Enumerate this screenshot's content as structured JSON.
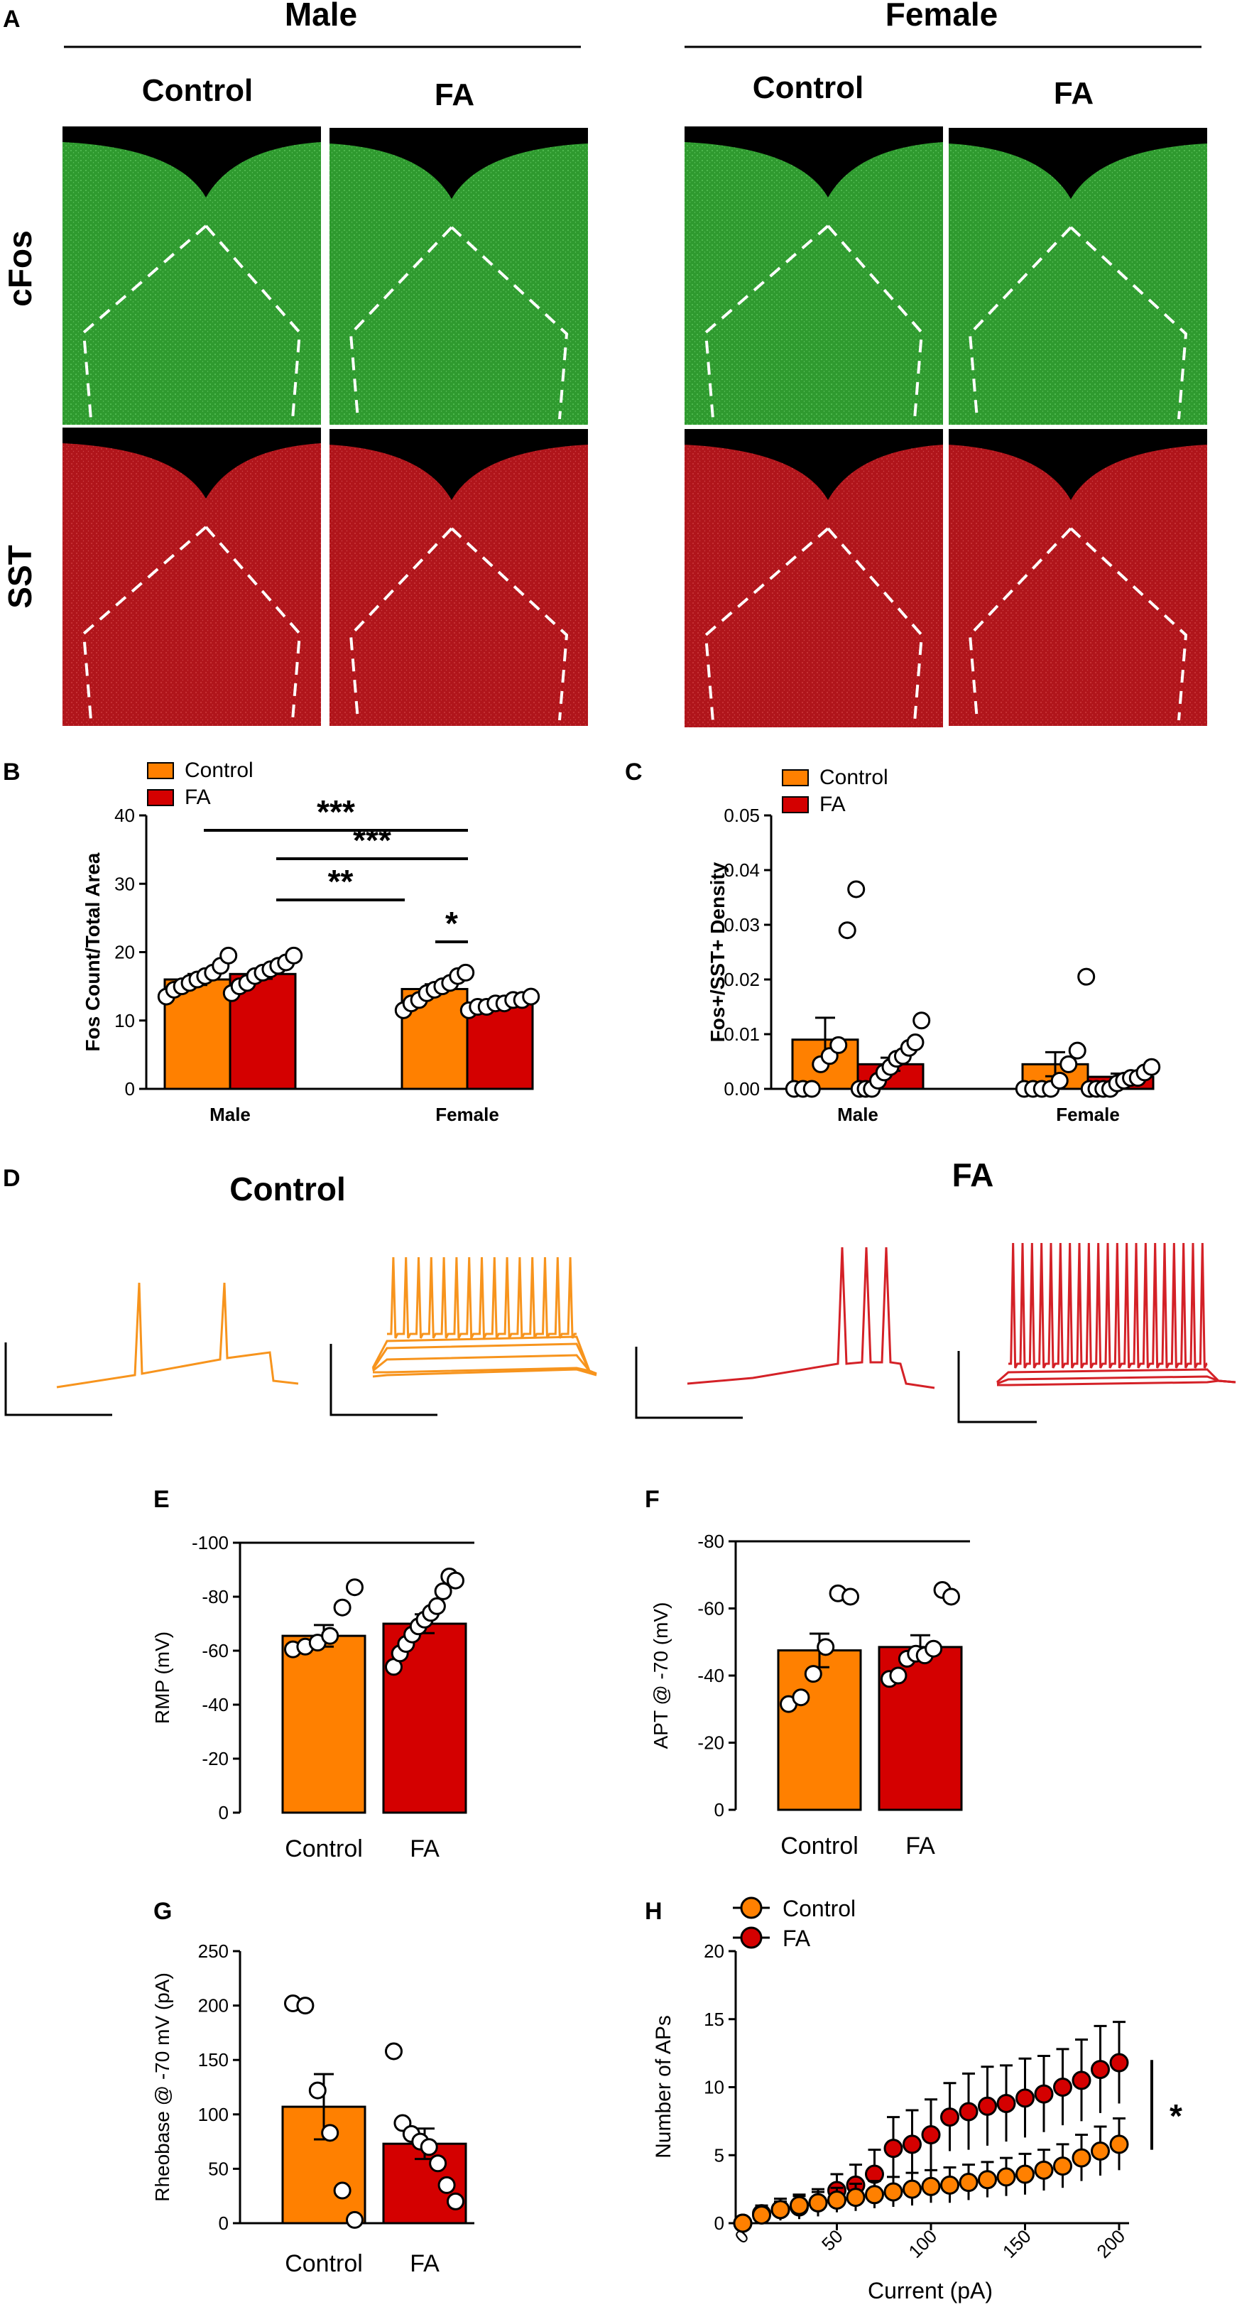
{
  "panel_letters": [
    "A",
    "B",
    "C",
    "D",
    "E",
    "F",
    "G",
    "H"
  ],
  "panel_a": {
    "sex_headers": [
      "Male",
      "Female"
    ],
    "group_headers": [
      "Control",
      "FA",
      "Control",
      "FA"
    ],
    "row_labels": [
      "cFos",
      "SST"
    ],
    "colors": {
      "cfos": "#2f9a2f",
      "sst": "#b0151b"
    }
  },
  "panel_d": {
    "titles": [
      "Control",
      "FA"
    ],
    "colors": {
      "control": "#f7941d",
      "fa": "#d42127"
    }
  },
  "colors": {
    "control": "#ff8000",
    "fa": "#d40000"
  },
  "chart_data": [
    {
      "id": "B",
      "type": "bar",
      "ylabel": "Fos Count/Total Area",
      "ylim": [
        0,
        40
      ],
      "yticks": [
        "0",
        "10",
        "20",
        "30",
        "40"
      ],
      "categories": [
        "Male",
        "Female"
      ],
      "legend": [
        "Control",
        "FA"
      ],
      "series": [
        {
          "name": "Control",
          "means": [
            16.0,
            14.6
          ],
          "sem": [
            0.8,
            0.7
          ],
          "points": [
            [
              13.5,
              14.5,
              15.0,
              15.5,
              16.0,
              16.5,
              17.0,
              18.0,
              19.5
            ],
            [
              11.5,
              12.5,
              13.0,
              14.0,
              14.5,
              15.0,
              15.5,
              16.5,
              17.0
            ]
          ]
        },
        {
          "name": "FA",
          "means": [
            16.8,
            12.5
          ],
          "sem": [
            0.7,
            0.3
          ],
          "points": [
            [
              14.0,
              15.0,
              15.5,
              16.5,
              17.0,
              17.5,
              18.0,
              18.5,
              19.5
            ],
            [
              11.5,
              12.0,
              12.0,
              12.5,
              12.5,
              13.0,
              13.0,
              13.5
            ]
          ]
        }
      ],
      "significance": [
        "***",
        "***",
        "**",
        "*"
      ]
    },
    {
      "id": "C",
      "type": "bar",
      "ylabel": "Fos+/SST+ Density",
      "ylim": [
        0,
        0.05
      ],
      "yticks": [
        "0.00",
        "0.01",
        "0.02",
        "0.03",
        "0.04",
        "0.05"
      ],
      "categories": [
        "Male",
        "Female"
      ],
      "legend": [
        "Control",
        "FA"
      ],
      "series": [
        {
          "name": "Control",
          "means": [
            0.009,
            0.0045
          ],
          "sem": [
            0.004,
            0.0022
          ],
          "points": [
            [
              0.0,
              0.0,
              0.0,
              0.0045,
              0.006,
              0.008,
              0.029,
              0.0365
            ],
            [
              0.0,
              0.0,
              0.0,
              0.0,
              0.0015,
              0.0045,
              0.007,
              0.0205
            ]
          ]
        },
        {
          "name": "FA",
          "means": [
            0.0045,
            0.0022
          ],
          "sem": [
            0.0012,
            0.0006
          ],
          "points": [
            [
              0.0,
              0.0,
              0.0,
              0.0015,
              0.003,
              0.004,
              0.0055,
              0.006,
              0.0075,
              0.0085,
              0.0125
            ],
            [
              0.0,
              0.0,
              0.0,
              0.0,
              0.001,
              0.0015,
              0.002,
              0.002,
              0.003,
              0.004
            ]
          ]
        }
      ]
    },
    {
      "id": "E",
      "type": "bar",
      "ylabel": "RMP (mV)",
      "ylim": [
        -100,
        0
      ],
      "yticks": [
        "0",
        "-20",
        "-40",
        "-60",
        "-80",
        "-100"
      ],
      "categories": [
        "Control",
        "FA"
      ],
      "means": [
        -65.5,
        -70.0
      ],
      "sem": [
        4.0,
        3.5
      ],
      "points": [
        [
          -60.5,
          -61.5,
          -63.0,
          -65.5,
          -76.0,
          -83.5
        ],
        [
          -54.0,
          -59.0,
          -62.5,
          -66.0,
          -69.0,
          -71.5,
          -74.0,
          -76.5,
          -82.0,
          -87.5,
          -86.0
        ]
      ]
    },
    {
      "id": "F",
      "type": "bar",
      "ylabel": "APT @ -70 (mV)",
      "ylim": [
        -80,
        0
      ],
      "yticks": [
        "0",
        "-20",
        "-40",
        "-60",
        "-80"
      ],
      "categories": [
        "Control",
        "FA"
      ],
      "means": [
        -47.5,
        -48.5
      ],
      "sem": [
        5.0,
        3.5
      ],
      "points": [
        [
          -31.5,
          -33.5,
          -40.5,
          -48.5,
          -64.5,
          -63.5
        ],
        [
          -39.0,
          -40.0,
          -45.0,
          -46.5,
          -46.0,
          -48.0,
          -65.5,
          -63.5
        ]
      ]
    },
    {
      "id": "G",
      "type": "bar",
      "ylabel": "Rheobase @ -70 mV (pA)",
      "ylim": [
        0,
        250
      ],
      "yticks": [
        "0",
        "50",
        "100",
        "150",
        "200",
        "250"
      ],
      "categories": [
        "Control",
        "FA"
      ],
      "means": [
        107,
        73
      ],
      "sem": [
        30,
        14
      ],
      "points": [
        [
          202,
          200,
          122,
          83,
          30,
          3
        ],
        [
          158,
          92,
          82,
          75,
          70,
          55,
          35,
          20
        ]
      ]
    },
    {
      "id": "H",
      "type": "line",
      "xlabel": "Current (pA)",
      "ylabel": "Number of APs",
      "xlim": [
        0,
        200
      ],
      "ylim": [
        0,
        20
      ],
      "xticks": [
        "0",
        "50",
        "100",
        "150",
        "200"
      ],
      "yticks": [
        "0",
        "5",
        "10",
        "15",
        "20"
      ],
      "legend": [
        "Control",
        "FA"
      ],
      "x": [
        0,
        10,
        20,
        30,
        40,
        50,
        60,
        70,
        80,
        90,
        100,
        110,
        120,
        130,
        140,
        150,
        160,
        170,
        180,
        190,
        200
      ],
      "series": [
        {
          "name": "Control",
          "y": [
            0.0,
            0.6,
            1.0,
            1.3,
            1.5,
            1.7,
            1.9,
            2.1,
            2.3,
            2.5,
            2.7,
            2.8,
            3.0,
            3.2,
            3.4,
            3.6,
            3.9,
            4.2,
            4.8,
            5.3,
            5.8
          ],
          "err": [
            0.3,
            0.5,
            0.6,
            0.7,
            0.8,
            0.9,
            1.0,
            1.0,
            1.1,
            1.2,
            1.2,
            1.3,
            1.3,
            1.3,
            1.4,
            1.5,
            1.5,
            1.6,
            1.7,
            1.8,
            1.9
          ]
        },
        {
          "name": "FA",
          "y": [
            0.0,
            0.7,
            1.0,
            1.2,
            1.5,
            2.4,
            2.8,
            3.6,
            5.5,
            5.8,
            6.5,
            7.8,
            8.2,
            8.6,
            8.8,
            9.2,
            9.5,
            10.0,
            10.5,
            11.3,
            11.8
          ],
          "err": [
            0.3,
            0.6,
            0.8,
            0.9,
            1.0,
            1.2,
            1.5,
            1.8,
            2.3,
            2.5,
            2.6,
            2.5,
            2.8,
            2.9,
            2.8,
            2.9,
            2.8,
            2.8,
            3.0,
            3.2,
            3.0
          ]
        }
      ],
      "significance": "*"
    }
  ]
}
